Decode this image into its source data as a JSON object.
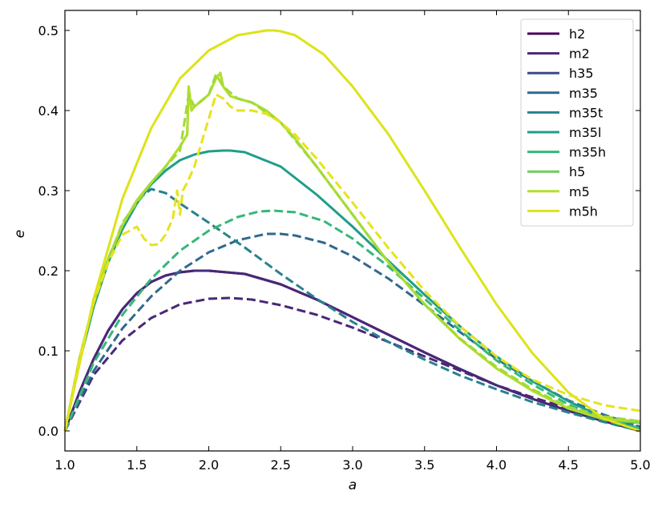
{
  "chart_data": {
    "type": "line",
    "title": "",
    "xlabel": "a",
    "ylabel": "e",
    "xlim": [
      1.0,
      5.0
    ],
    "ylim": [
      -0.025,
      0.525
    ],
    "xticks": [
      "1.0",
      "1.5",
      "2.0",
      "2.5",
      "3.0",
      "3.5",
      "4.0",
      "4.5",
      "5.0"
    ],
    "yticks": [
      "0.0",
      "0.1",
      "0.2",
      "0.3",
      "0.4",
      "0.5"
    ],
    "grid": false,
    "legend_position": "top-right",
    "legend": [
      "h2",
      "m2",
      "h35",
      "m35",
      "m35t",
      "m35l",
      "m35h",
      "h5",
      "m5",
      "m5h"
    ],
    "series": [
      {
        "name": "h2",
        "color": "#440154",
        "dash": "solid",
        "x": [
          1.0,
          1.1,
          1.2,
          1.3,
          1.4,
          1.5,
          1.6,
          1.7,
          1.8,
          1.9,
          2.0,
          2.25,
          2.5,
          2.75,
          3.0,
          3.25,
          3.5,
          3.75,
          4.0,
          4.25,
          4.5,
          4.75,
          5.0
        ],
        "y": [
          0.0,
          0.048,
          0.09,
          0.125,
          0.152,
          0.172,
          0.186,
          0.194,
          0.198,
          0.2,
          0.2,
          0.196,
          0.183,
          0.164,
          0.142,
          0.12,
          0.098,
          0.077,
          0.057,
          0.04,
          0.025,
          0.012,
          0.0
        ]
      },
      {
        "name": "m2",
        "color": "#482878",
        "dash": "solid",
        "x": [
          1.0,
          1.1,
          1.2,
          1.3,
          1.4,
          1.5,
          1.6,
          1.7,
          1.8,
          1.9,
          2.0,
          2.25,
          2.5,
          2.75,
          3.0,
          3.25,
          3.5,
          3.75,
          4.0,
          4.25,
          4.5,
          4.75,
          5.0
        ],
        "y": [
          0.0,
          0.048,
          0.09,
          0.125,
          0.152,
          0.172,
          0.186,
          0.194,
          0.198,
          0.2,
          0.2,
          0.196,
          0.183,
          0.164,
          0.142,
          0.12,
          0.098,
          0.077,
          0.057,
          0.04,
          0.025,
          0.012,
          0.0
        ]
      },
      {
        "name": "m2-dashed",
        "color": "#482878",
        "dash": "dashed",
        "x": [
          1.0,
          1.2,
          1.4,
          1.6,
          1.8,
          2.0,
          2.15,
          2.3,
          2.5,
          2.75,
          3.0,
          3.25,
          3.5,
          3.75,
          4.0,
          4.25,
          4.5,
          4.75,
          5.0
        ],
        "y": [
          0.0,
          0.07,
          0.113,
          0.141,
          0.158,
          0.165,
          0.166,
          0.164,
          0.157,
          0.145,
          0.129,
          0.111,
          0.093,
          0.075,
          0.057,
          0.042,
          0.028,
          0.016,
          0.005
        ]
      },
      {
        "name": "h35",
        "color": "#3e4989",
        "dash": "solid",
        "x": [],
        "y": []
      },
      {
        "name": "m35",
        "color": "#31688e",
        "dash": "solid",
        "x": [],
        "y": []
      },
      {
        "name": "m35-dashed",
        "color": "#31688e",
        "dash": "dashed",
        "x": [
          1.0,
          1.2,
          1.4,
          1.6,
          1.8,
          2.0,
          2.2,
          2.4,
          2.5,
          2.6,
          2.8,
          3.0,
          3.25,
          3.5,
          3.75,
          4.0,
          4.25,
          4.5,
          4.75,
          5.0
        ],
        "y": [
          0.0,
          0.075,
          0.128,
          0.168,
          0.2,
          0.223,
          0.238,
          0.246,
          0.246,
          0.244,
          0.235,
          0.218,
          0.19,
          0.157,
          0.123,
          0.09,
          0.062,
          0.038,
          0.02,
          0.005
        ]
      },
      {
        "name": "m35t",
        "color": "#26828e",
        "dash": "solid",
        "x": [],
        "y": []
      },
      {
        "name": "m35t-dashed",
        "color": "#26828e",
        "dash": "dashed",
        "x": [
          1.0,
          1.1,
          1.2,
          1.3,
          1.4,
          1.5,
          1.6,
          1.7,
          1.8,
          2.0,
          2.25,
          2.5,
          2.75,
          3.0,
          3.25,
          3.5,
          3.75,
          4.0,
          4.25,
          4.5,
          4.75,
          5.0
        ],
        "y": [
          0.0,
          0.09,
          0.16,
          0.215,
          0.257,
          0.288,
          0.302,
          0.297,
          0.284,
          0.26,
          0.229,
          0.196,
          0.165,
          0.136,
          0.111,
          0.089,
          0.069,
          0.052,
          0.036,
          0.023,
          0.011,
          0.0
        ]
      },
      {
        "name": "m35l",
        "color": "#1f9e89",
        "dash": "solid",
        "x": [
          1.0,
          1.1,
          1.2,
          1.3,
          1.4,
          1.5,
          1.6,
          1.7,
          1.8,
          1.9,
          2.0,
          2.1,
          2.15,
          2.25,
          2.5,
          2.75,
          3.0,
          3.25,
          3.5,
          3.75,
          4.0,
          4.25,
          4.5,
          4.75,
          5.0
        ],
        "y": [
          0.0,
          0.085,
          0.155,
          0.21,
          0.252,
          0.284,
          0.308,
          0.325,
          0.338,
          0.345,
          0.349,
          0.35,
          0.35,
          0.348,
          0.33,
          0.295,
          0.255,
          0.212,
          0.17,
          0.13,
          0.093,
          0.062,
          0.037,
          0.016,
          0.003
        ]
      },
      {
        "name": "m35h",
        "color": "#35b779",
        "dash": "solid",
        "x": [],
        "y": []
      },
      {
        "name": "m35h-dashed",
        "color": "#35b779",
        "dash": "dashed",
        "x": [
          1.0,
          1.2,
          1.4,
          1.6,
          1.8,
          2.0,
          2.2,
          2.35,
          2.45,
          2.6,
          2.8,
          3.0,
          3.25,
          3.5,
          3.75,
          4.0,
          4.25,
          4.5,
          4.75,
          5.0
        ],
        "y": [
          0.0,
          0.085,
          0.145,
          0.19,
          0.225,
          0.25,
          0.267,
          0.274,
          0.275,
          0.273,
          0.262,
          0.24,
          0.205,
          0.165,
          0.125,
          0.088,
          0.058,
          0.033,
          0.015,
          0.003
        ]
      },
      {
        "name": "h5",
        "color": "#6ece58",
        "dash": "solid",
        "x": [
          1.0,
          1.1,
          1.2,
          1.3,
          1.4,
          1.5,
          1.6,
          1.7,
          1.8,
          1.85,
          1.86,
          1.88,
          1.9,
          1.95,
          2.0,
          2.05,
          2.08,
          2.1,
          2.15,
          2.2,
          2.3,
          2.4,
          2.5,
          2.6,
          2.75,
          3.0,
          3.25,
          3.5,
          3.75,
          4.0,
          4.25,
          4.5,
          4.75,
          5.0
        ],
        "y": [
          0.0,
          0.09,
          0.16,
          0.215,
          0.257,
          0.288,
          0.31,
          0.33,
          0.355,
          0.37,
          0.43,
          0.4,
          0.405,
          0.412,
          0.42,
          0.44,
          0.447,
          0.43,
          0.418,
          0.415,
          0.41,
          0.4,
          0.385,
          0.365,
          0.33,
          0.27,
          0.21,
          0.158,
          0.114,
          0.078,
          0.05,
          0.028,
          0.014,
          0.01
        ]
      },
      {
        "name": "m5",
        "color": "#b5de2b",
        "dash": "solid",
        "x": [
          1.0,
          1.1,
          1.2,
          1.3,
          1.4,
          1.5,
          1.6,
          1.7,
          1.8,
          1.85,
          1.86,
          1.88,
          1.9,
          1.95,
          2.0,
          2.05,
          2.08,
          2.1,
          2.15,
          2.2,
          2.3,
          2.4,
          2.5,
          2.6,
          2.75,
          3.0,
          3.25,
          3.5,
          3.75,
          4.0,
          4.25,
          4.5,
          4.75,
          5.0
        ],
        "y": [
          0.0,
          0.09,
          0.16,
          0.215,
          0.257,
          0.288,
          0.31,
          0.33,
          0.355,
          0.37,
          0.43,
          0.4,
          0.405,
          0.412,
          0.42,
          0.44,
          0.447,
          0.43,
          0.418,
          0.415,
          0.41,
          0.4,
          0.385,
          0.365,
          0.33,
          0.27,
          0.21,
          0.158,
          0.114,
          0.078,
          0.05,
          0.028,
          0.015,
          0.012
        ]
      },
      {
        "name": "m5-dashed",
        "color": "#a0da39",
        "dash": "dashed",
        "x": [
          1.0,
          1.2,
          1.4,
          1.6,
          1.8,
          1.86,
          1.9,
          2.0,
          2.05,
          2.1,
          2.2,
          2.3,
          2.5,
          2.75,
          3.0,
          3.25,
          3.5,
          3.75,
          4.0,
          4.25,
          4.5,
          4.75,
          5.0
        ],
        "y": [
          0.0,
          0.165,
          0.26,
          0.31,
          0.35,
          0.42,
          0.405,
          0.42,
          0.445,
          0.43,
          0.415,
          0.41,
          0.385,
          0.33,
          0.27,
          0.21,
          0.158,
          0.115,
          0.08,
          0.052,
          0.03,
          0.018,
          0.012
        ]
      },
      {
        "name": "m5h",
        "color": "#dde318",
        "dash": "solid",
        "x": [
          1.0,
          1.2,
          1.4,
          1.6,
          1.8,
          2.0,
          2.2,
          2.4,
          2.45,
          2.5,
          2.6,
          2.8,
          3.0,
          3.25,
          3.5,
          3.75,
          4.0,
          4.25,
          4.5,
          4.75,
          5.0
        ],
        "y": [
          0.0,
          0.165,
          0.29,
          0.378,
          0.44,
          0.475,
          0.494,
          0.5,
          0.5,
          0.499,
          0.494,
          0.47,
          0.43,
          0.37,
          0.3,
          0.228,
          0.158,
          0.097,
          0.048,
          0.015,
          0.0
        ]
      },
      {
        "name": "m5h-dashed",
        "color": "#e8e21e",
        "dash": "dashed",
        "x": [
          1.0,
          1.1,
          1.2,
          1.3,
          1.4,
          1.5,
          1.55,
          1.6,
          1.65,
          1.7,
          1.75,
          1.78,
          1.8,
          1.82,
          1.85,
          1.9,
          2.0,
          2.05,
          2.1,
          2.15,
          2.2,
          2.3,
          2.4,
          2.5,
          2.6,
          2.75,
          3.0,
          3.25,
          3.5,
          3.75,
          4.0,
          4.25,
          4.5,
          4.75,
          5.0
        ],
        "y": [
          0.0,
          0.09,
          0.16,
          0.21,
          0.245,
          0.255,
          0.24,
          0.232,
          0.233,
          0.245,
          0.265,
          0.3,
          0.27,
          0.3,
          0.31,
          0.33,
          0.39,
          0.42,
          0.415,
          0.405,
          0.4,
          0.4,
          0.396,
          0.385,
          0.37,
          0.34,
          0.285,
          0.228,
          0.175,
          0.13,
          0.093,
          0.064,
          0.045,
          0.032,
          0.025
        ]
      }
    ]
  }
}
